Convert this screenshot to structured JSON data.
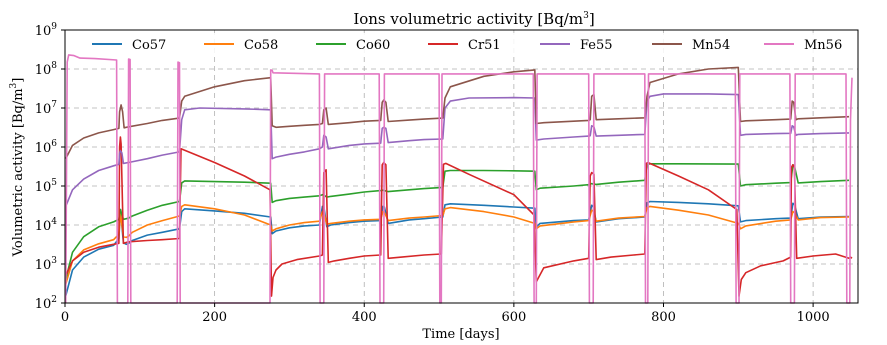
{
  "chart_data": {
    "type": "line",
    "title": "Ions volumetric activity [Bq/m³]",
    "title_main": "Ions volumetric activity [Bq/m",
    "title_sup": "3",
    "title_end": "]",
    "xlabel": "Time [days]",
    "ylabel_main": "Volumetric activity [Bq/m",
    "ylabel_sup": "3",
    "ylabel_end": "]",
    "xlim": [
      0,
      1060
    ],
    "ylim": [
      100,
      1000000000
    ],
    "yscale": "log",
    "grid": true,
    "legend_placement": "top",
    "x_ticks": [
      0,
      200,
      400,
      600,
      800,
      1000
    ],
    "y_ticks": [
      {
        "base": "10",
        "exp": "2",
        "value": 100
      },
      {
        "base": "10",
        "exp": "3",
        "value": 1000
      },
      {
        "base": "10",
        "exp": "4",
        "value": 10000
      },
      {
        "base": "10",
        "exp": "5",
        "value": 100000
      },
      {
        "base": "10",
        "exp": "6",
        "value": 1000000
      },
      {
        "base": "10",
        "exp": "7",
        "value": 10000000
      },
      {
        "base": "10",
        "exp": "8",
        "value": 100000000
      },
      {
        "base": "10",
        "exp": "9",
        "value": 1000000000
      }
    ],
    "series": [
      {
        "name": "Co57",
        "color": "#1f77b4",
        "x": [
          1,
          10,
          25,
          45,
          65,
          72,
          74,
          78,
          82,
          85,
          90,
          110,
          130,
          153,
          156,
          160,
          200,
          240,
          275,
          277,
          282,
          300,
          320,
          340,
          344,
          346,
          350,
          355,
          380,
          400,
          422,
          425,
          427,
          432,
          460,
          480,
          505,
          508,
          515,
          560,
          600,
          628,
          630,
          635,
          680,
          700,
          704,
          706,
          710,
          740,
          775,
          778,
          782,
          820,
          860,
          900,
          903,
          910,
          950,
          970,
          973,
          975,
          980,
          1010,
          1048
        ],
        "y": [
          150,
          700,
          1500,
          2400,
          3000,
          4500,
          25000,
          3500,
          3200,
          3400,
          4000,
          5500,
          6500,
          8000,
          22000,
          26000,
          23000,
          20000,
          16000,
          6000,
          7000,
          8500,
          9500,
          10000,
          30000,
          30000,
          9000,
          10000,
          11500,
          12500,
          13000,
          30000,
          29000,
          11000,
          13500,
          14500,
          16000,
          33000,
          35000,
          32000,
          29000,
          27000,
          9000,
          11000,
          13000,
          13500,
          32000,
          30000,
          12000,
          14500,
          16000,
          37000,
          40000,
          38000,
          35000,
          31000,
          12000,
          13000,
          14500,
          15000,
          36000,
          34000,
          14500,
          16000,
          16500
        ]
      },
      {
        "name": "Co58",
        "color": "#ff7f0e",
        "x": [
          1,
          10,
          25,
          45,
          65,
          72,
          74,
          78,
          82,
          85,
          90,
          110,
          130,
          153,
          156,
          160,
          200,
          240,
          275,
          277,
          282,
          300,
          320,
          340,
          344,
          346,
          350,
          355,
          380,
          400,
          422,
          425,
          427,
          432,
          460,
          480,
          505,
          508,
          515,
          560,
          600,
          628,
          630,
          635,
          680,
          700,
          704,
          706,
          710,
          740,
          775,
          778,
          782,
          820,
          860,
          900,
          903,
          910,
          950,
          970,
          973,
          975,
          980,
          1010,
          1048
        ],
        "y": [
          300,
          1200,
          2300,
          3300,
          4200,
          5800,
          20000,
          5000,
          4800,
          5200,
          6500,
          10000,
          13000,
          17000,
          30000,
          33000,
          26000,
          18000,
          10000,
          7000,
          8000,
          10000,
          11500,
          12500,
          22000,
          21000,
          10500,
          11000,
          12500,
          13500,
          14000,
          22000,
          21000,
          13000,
          15000,
          16000,
          17500,
          26000,
          28000,
          22000,
          16000,
          11000,
          8000,
          9500,
          12000,
          13000,
          24000,
          23000,
          12500,
          15000,
          16500,
          28000,
          30000,
          24000,
          18000,
          11000,
          8000,
          9500,
          12500,
          13500,
          22000,
          21000,
          13500,
          15500,
          16000
        ]
      },
      {
        "name": "Co60",
        "color": "#2ca02c",
        "x": [
          1,
          10,
          25,
          45,
          65,
          72,
          74,
          78,
          82,
          85,
          90,
          110,
          130,
          153,
          156,
          160,
          200,
          240,
          275,
          277,
          282,
          300,
          320,
          340,
          344,
          346,
          350,
          355,
          380,
          400,
          422,
          425,
          427,
          432,
          460,
          480,
          505,
          508,
          515,
          560,
          600,
          628,
          630,
          635,
          680,
          700,
          704,
          706,
          710,
          740,
          775,
          778,
          782,
          820,
          860,
          900,
          903,
          910,
          950,
          970,
          973,
          975,
          980,
          1010,
          1048
        ],
        "y": [
          400,
          2000,
          5000,
          9000,
          12000,
          14000,
          25000,
          14000,
          14500,
          15000,
          17000,
          24000,
          32000,
          40000,
          120000,
          135000,
          130000,
          125000,
          118000,
          38000,
          42000,
          48000,
          52000,
          56000,
          60000,
          58000,
          52000,
          54000,
          62000,
          70000,
          76000,
          78000,
          76000,
          72000,
          80000,
          86000,
          92000,
          240000,
          250000,
          250000,
          245000,
          240000,
          80000,
          88000,
          100000,
          108000,
          115000,
          112000,
          110000,
          125000,
          140000,
          350000,
          370000,
          370000,
          368000,
          365000,
          100000,
          108000,
          118000,
          122000,
          350000,
          330000,
          120000,
          130000,
          140000
        ]
      },
      {
        "name": "Cr51",
        "color": "#d62728",
        "x": [
          1,
          10,
          25,
          45,
          65,
          72,
          73,
          74,
          75,
          78,
          85,
          110,
          130,
          153,
          155,
          200,
          240,
          274,
          276,
          278,
          282,
          290,
          310,
          340,
          344,
          346,
          349,
          352,
          360,
          380,
          400,
          422,
          424,
          426,
          429,
          432,
          450,
          480,
          503,
          506,
          509,
          540,
          600,
          627,
          630,
          640,
          680,
          700,
          702,
          704,
          707,
          710,
          730,
          760,
          775,
          777,
          779,
          820,
          860,
          898,
          901,
          904,
          910,
          930,
          960,
          970,
          971,
          973,
          975,
          978,
          1000,
          1030,
          1048,
          1050,
          1052
        ],
        "y": [
          500,
          1200,
          2000,
          2700,
          3200,
          3400,
          1000000,
          1800000,
          1200000,
          3400,
          3700,
          4000,
          4200,
          4500,
          900000,
          400000,
          180000,
          80000,
          150,
          450,
          700,
          1000,
          1300,
          1600,
          1700,
          220000,
          260000,
          1100,
          1200,
          1400,
          1600,
          1700,
          350000,
          400000,
          350000,
          1400,
          1500,
          1700,
          1800,
          360000,
          380000,
          200000,
          60000,
          18000,
          350,
          800,
          1200,
          1400,
          180000,
          220000,
          200000,
          1300,
          1500,
          1700,
          1800,
          380000,
          400000,
          180000,
          80000,
          25000,
          150,
          400,
          600,
          900,
          1200,
          1500,
          300000,
          350000,
          300000,
          1400,
          1600,
          1800,
          1400,
          1500,
          1400
        ]
      },
      {
        "name": "Fe55",
        "color": "#9467bd",
        "x": [
          1,
          10,
          25,
          45,
          65,
          72,
          73,
          74,
          76,
          78,
          85,
          110,
          130,
          153,
          156,
          160,
          180,
          240,
          275,
          277,
          282,
          300,
          320,
          340,
          344,
          346,
          349,
          352,
          380,
          400,
          422,
          424,
          426,
          429,
          432,
          460,
          480,
          505,
          508,
          515,
          540,
          600,
          628,
          630,
          640,
          680,
          700,
          702,
          704,
          707,
          710,
          740,
          775,
          778,
          782,
          800,
          860,
          900,
          903,
          910,
          950,
          970,
          972,
          974,
          977,
          980,
          1010,
          1048
        ],
        "y": [
          30000,
          80000,
          150000,
          250000,
          330000,
          360000,
          700000,
          800000,
          700000,
          380000,
          400000,
          500000,
          620000,
          750000,
          5000000,
          9000000,
          10000000,
          9500000,
          9000000,
          500000,
          550000,
          650000,
          750000,
          900000,
          1000000,
          2000000,
          1800000,
          900000,
          1100000,
          1200000,
          1250000,
          3000000,
          3200000,
          3000000,
          1300000,
          1450000,
          1550000,
          1600000,
          10000000,
          15000000,
          18000000,
          18500000,
          18000000,
          1500000,
          1600000,
          1800000,
          1900000,
          1950000,
          3500000,
          3300000,
          1900000,
          2000000,
          2100000,
          15000000,
          20000000,
          23000000,
          23000000,
          22000000,
          2000000,
          2100000,
          2200000,
          2250000,
          3500000,
          3300000,
          2000000,
          2100000,
          2200000,
          2300000
        ]
      },
      {
        "name": "Mn54",
        "color": "#8c564b",
        "x": [
          1,
          10,
          25,
          45,
          65,
          72,
          73,
          75,
          77,
          79,
          85,
          110,
          130,
          153,
          156,
          160,
          200,
          240,
          275,
          277,
          282,
          300,
          320,
          340,
          344,
          346,
          349,
          352,
          380,
          400,
          422,
          424,
          426,
          429,
          432,
          460,
          480,
          505,
          508,
          515,
          560,
          600,
          628,
          630,
          640,
          680,
          700,
          702,
          704,
          707,
          710,
          740,
          775,
          778,
          782,
          820,
          860,
          900,
          903,
          910,
          950,
          970,
          972,
          974,
          977,
          980,
          1010,
          1048
        ],
        "y": [
          500000,
          1100000,
          1700000,
          2300000,
          2800000,
          3000000,
          8000000,
          12000000,
          8000000,
          3100000,
          3300000,
          4000000,
          4800000,
          5500000,
          15000000,
          20000000,
          35000000,
          50000000,
          60000000,
          3500000,
          3200000,
          3400000,
          3600000,
          3800000,
          4000000,
          9000000,
          10000000,
          3800000,
          4200000,
          4600000,
          4800000,
          14000000,
          16000000,
          14000000,
          4500000,
          4900000,
          5200000,
          5500000,
          18000000,
          35000000,
          65000000,
          85000000,
          95000000,
          4000000,
          4200000,
          4600000,
          4800000,
          5000000,
          20000000,
          22000000,
          5000000,
          5300000,
          5600000,
          20000000,
          45000000,
          75000000,
          100000000,
          110000000,
          4500000,
          4700000,
          5000000,
          5200000,
          15000000,
          14000000,
          5000000,
          5300000,
          5600000,
          6000000
        ]
      },
      {
        "name": "Mn56",
        "color": "#e377c2",
        "x": [
          1,
          3,
          5,
          12,
          20,
          40,
          69,
          70,
          84,
          85,
          87,
          88,
          150,
          151,
          153,
          154,
          274,
          275,
          277,
          278,
          340,
          341,
          346,
          347,
          420,
          421,
          426,
          427,
          500,
          501,
          503,
          504,
          626,
          627,
          630,
          631,
          700,
          701,
          706,
          707,
          775,
          776,
          779,
          780,
          896,
          897,
          901,
          902,
          969,
          970,
          975,
          976,
          1044,
          1045,
          1049,
          1050,
          1051,
          1052
        ],
        "y": [
          100,
          150000000,
          230000000,
          220000000,
          190000000,
          185000000,
          170000000,
          100,
          100,
          180000000,
          175000000,
          100,
          100,
          150000000,
          145000000,
          100,
          100,
          95000000,
          92000000,
          80000000,
          75000000,
          100,
          100,
          75000000,
          75000000,
          100,
          100,
          75000000,
          75000000,
          100,
          100,
          75000000,
          75000000,
          100,
          100,
          75000000,
          75000000,
          100,
          100,
          75000000,
          75000000,
          100,
          100,
          75000000,
          75000000,
          100,
          100,
          75000000,
          75000000,
          100,
          100,
          75000000,
          75000000,
          100,
          100,
          5000000,
          20000000,
          60000000
        ]
      }
    ]
  }
}
